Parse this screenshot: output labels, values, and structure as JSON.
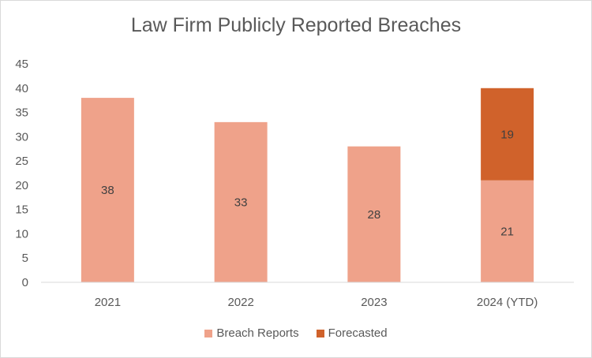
{
  "chart_data": {
    "type": "bar",
    "stacked": true,
    "title": "Law Firm Publicly Reported Breaches",
    "categories": [
      "2021",
      "2022",
      "2023",
      "2024 (YTD)"
    ],
    "series": [
      {
        "name": "Breach Reports",
        "values": [
          38,
          33,
          28,
          21
        ],
        "color": "#EFA28A"
      },
      {
        "name": "Forecasted",
        "values": [
          null,
          null,
          null,
          19
        ],
        "color": "#D0622B"
      }
    ],
    "ylim": [
      0,
      45
    ],
    "yticks": [
      "0",
      "5",
      "10",
      "15",
      "20",
      "25",
      "30",
      "35",
      "40",
      "45"
    ],
    "grid": false,
    "legend": "bottom",
    "data_labels": true
  }
}
